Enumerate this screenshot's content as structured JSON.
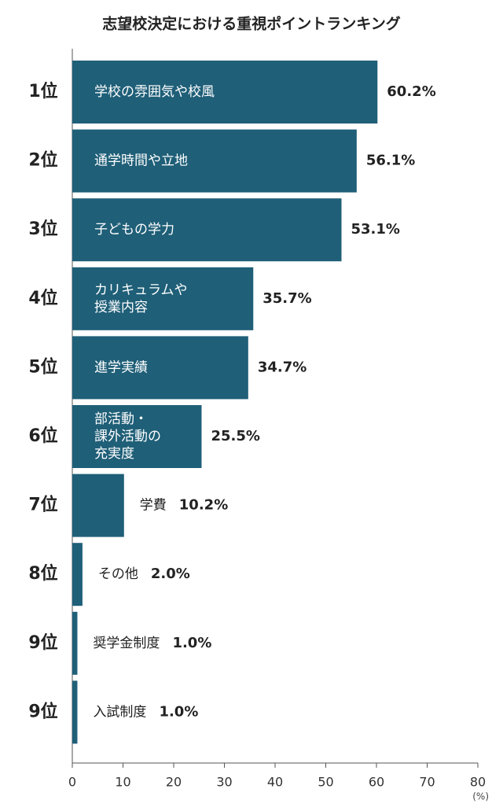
{
  "chart_data": {
    "type": "bar",
    "orientation": "horizontal",
    "title": "志望校決定における重視ポイントランキング",
    "ranks": [
      "1位",
      "2位",
      "3位",
      "4位",
      "5位",
      "6位",
      "7位",
      "8位",
      "9位",
      "9位"
    ],
    "categories": [
      [
        "学校の雰囲気や校風"
      ],
      [
        "通学時間や立地"
      ],
      [
        "子どもの学力"
      ],
      [
        "カリキュラムや",
        "授業内容"
      ],
      [
        "進学実績"
      ],
      [
        "部活動・",
        "課外活動の",
        "充実度"
      ],
      [
        "学費"
      ],
      [
        "その他"
      ],
      [
        "奨学金制度"
      ],
      [
        "入試制度"
      ]
    ],
    "values": [
      60.2,
      56.1,
      53.1,
      35.7,
      34.7,
      25.5,
      10.2,
      2.0,
      1.0,
      1.0
    ],
    "value_labels": [
      "60.2%",
      "56.1%",
      "53.1%",
      "35.7%",
      "34.7%",
      "25.5%",
      "10.2%",
      "2.0%",
      "1.0%",
      "1.0%"
    ],
    "color": "#1f5f78",
    "xlim": [
      0,
      80
    ],
    "xticks": [
      0,
      10,
      20,
      30,
      40,
      50,
      60,
      70,
      80
    ],
    "x_unit": "(%)"
  }
}
